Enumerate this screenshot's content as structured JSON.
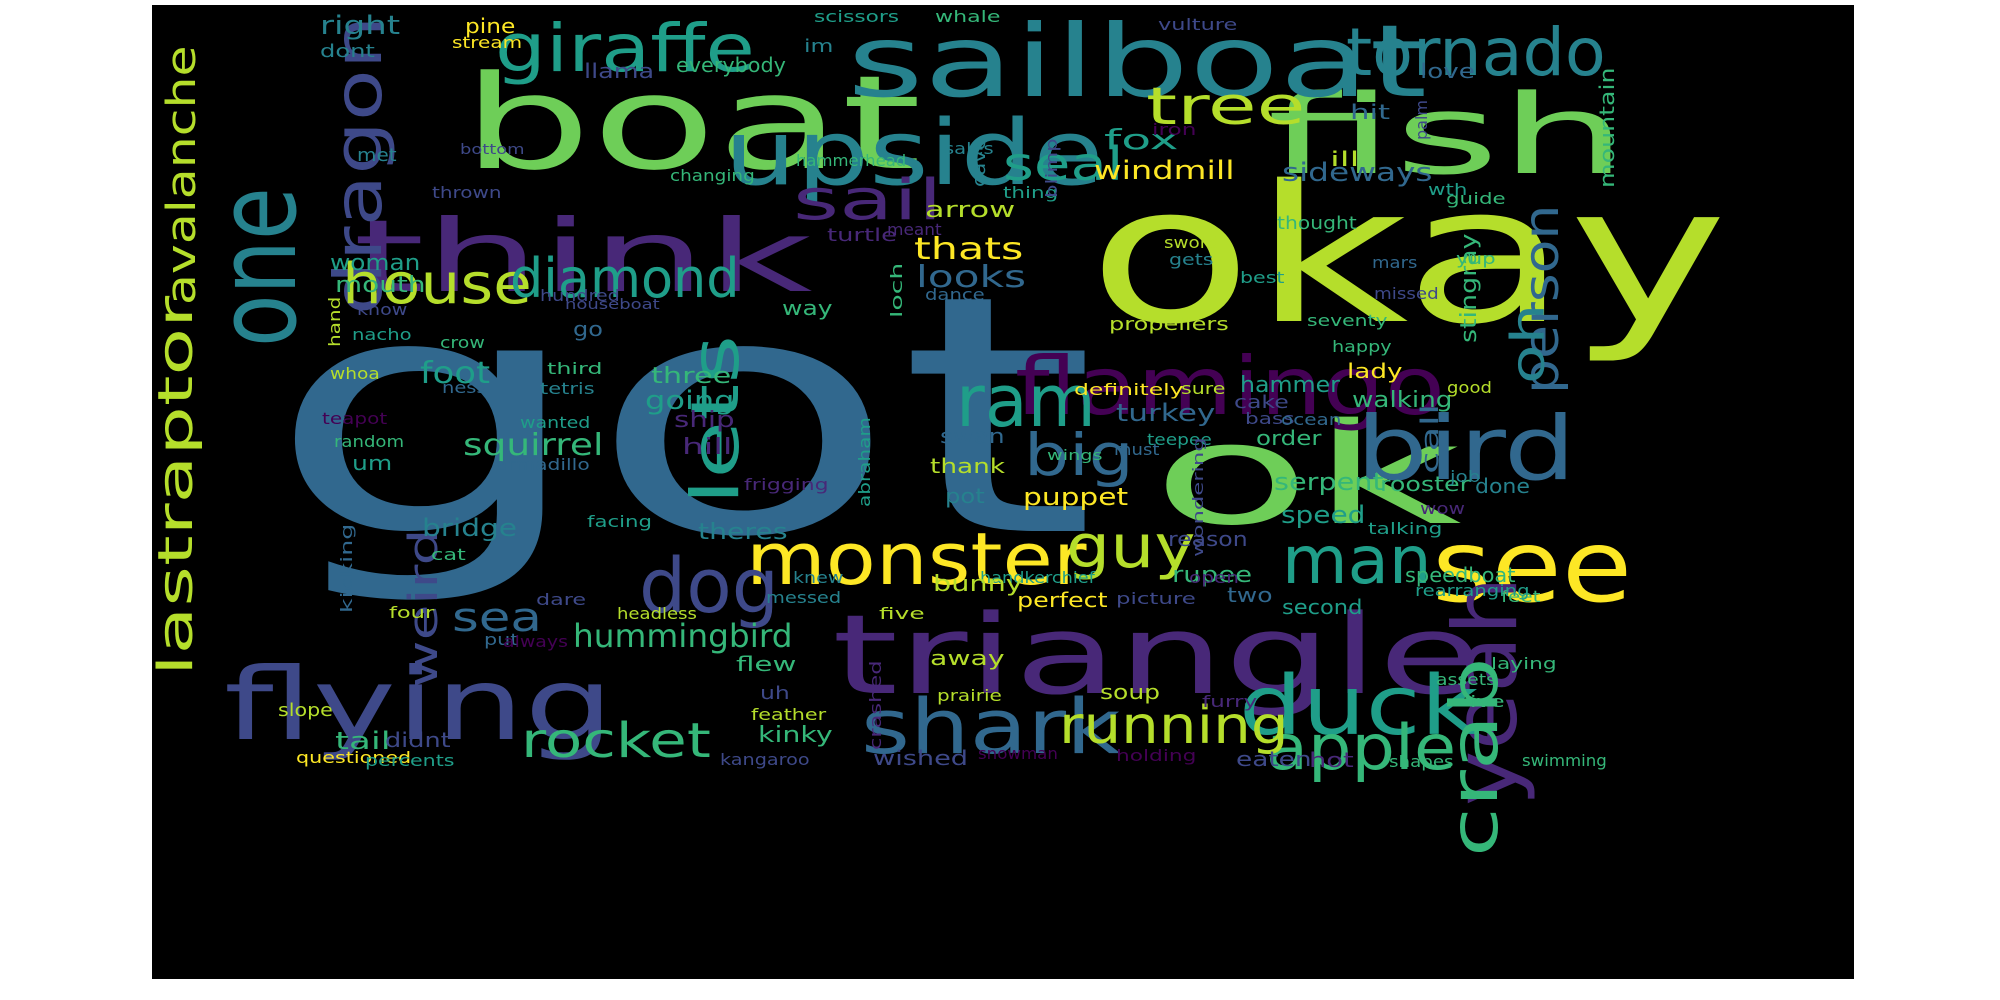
{
  "palette": {
    "c1": "#fde725",
    "c2": "#b5de2b",
    "c3": "#6ece58",
    "c4": "#35b779",
    "c5": "#1f9e89",
    "c6": "#26828e",
    "c7": "#31688e",
    "c8": "#3e4989",
    "c9": "#482878",
    "c10": "#440154",
    "background": "#000000"
  },
  "words": [
    "got",
    "okay",
    "boat",
    "ok",
    "fish",
    "sailboat",
    "triangle",
    "flying",
    "one",
    "upside",
    "think",
    "see",
    "flamingo",
    "giraffe",
    "tornado",
    "monster",
    "dragon",
    "bird",
    "yeah",
    "duck",
    "shark",
    "dog",
    "house",
    "lets",
    "diamond",
    "man",
    "crab",
    "apple",
    "lastraptor",
    "avalanche",
    "ram",
    "big",
    "guy",
    "tree",
    "sail",
    "seal",
    "person",
    "oh",
    "running",
    "rocket",
    "hummingbird",
    "sea",
    "weird",
    "squirrel",
    "fox",
    "windmill",
    "sideways",
    "looks",
    "thats",
    "woman",
    "mouth",
    "foot",
    "going",
    "three",
    "turkey",
    "hammer",
    "walking",
    "call",
    "stingray",
    "mountain",
    "right",
    "dont",
    "pine",
    "stream",
    "im",
    "llama",
    "everybody",
    "scissors",
    "whale",
    "vulture",
    "love",
    "hit",
    "palm",
    "iron",
    "met",
    "bottom",
    "thrown",
    "changing",
    "hammerhead",
    "sales",
    "cave",
    "thing",
    "blimp",
    "ill",
    "wth",
    "guide",
    "thought",
    "arrow",
    "turtle",
    "meant",
    "sword",
    "gets",
    "yup",
    "mars",
    "best",
    "dance",
    "loch",
    "hundred",
    "houseboat",
    "know",
    "hand",
    "nacho",
    "way",
    "go",
    "propellers",
    "seventy",
    "happy",
    "missed",
    "crow",
    "third",
    "whoa",
    "ness",
    "tetris",
    "definitely",
    "sure",
    "good",
    "teapot",
    "wanted",
    "ship",
    "hill",
    "cake",
    "bass",
    "ocean",
    "lady",
    "random",
    "armadillo",
    "swan",
    "wings",
    "must",
    "order",
    "teepee",
    "thank",
    "abraham",
    "um",
    "puppet",
    "serpent",
    "rooster",
    "done",
    "job",
    "bridge",
    "theres",
    "speed",
    "reason",
    "pot",
    "frigging",
    "wow",
    "talking",
    "facing",
    "wondering",
    "cat",
    "kicking",
    "knew",
    "rupee",
    "handkerchief",
    "open",
    "speedboat",
    "bunny",
    "feet",
    "rearranging",
    "dare",
    "four",
    "messed",
    "headless",
    "picture",
    "two",
    "perfect",
    "five",
    "second",
    "put",
    "always",
    "flew",
    "away",
    "slope",
    "uh",
    "soup",
    "prairie",
    "crashed",
    "feather",
    "laying",
    "assets",
    "ive",
    "furry",
    "tail",
    "didnt",
    "kinky",
    "questioned",
    "percents",
    "wished",
    "kangaroo",
    "snowman",
    "holding",
    "eaten",
    "hot",
    "shapes",
    "swimming"
  ]
}
